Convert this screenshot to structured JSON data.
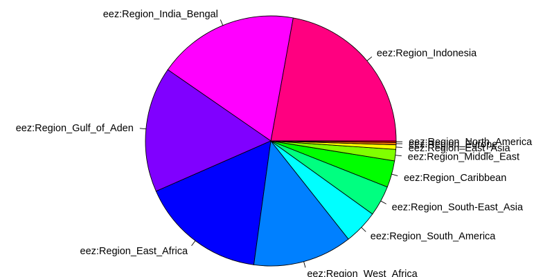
{
  "chart_data": {
    "type": "pie",
    "title": "",
    "slices": [
      {
        "label": "eez:Region_Indonesia",
        "value": 22.5,
        "color": "#FF0080"
      },
      {
        "label": "eez:Region_India_Bengal",
        "value": 18.5,
        "color": "#FF00FF"
      },
      {
        "label": "eez:Region_Gulf_of_Aden",
        "value": 16.5,
        "color": "#8000FF"
      },
      {
        "label": "eez:Region_East_Africa",
        "value": 16.5,
        "color": "#0000FF"
      },
      {
        "label": "eez:Region_West_Africa",
        "value": 13.0,
        "color": "#0080FF"
      },
      {
        "label": "eez:Region_South_America",
        "value": 4.5,
        "color": "#00FFFF"
      },
      {
        "label": "eez:Region_South-East_Asia",
        "value": 4.0,
        "color": "#00FF80"
      },
      {
        "label": "eez:Region_Caribbean",
        "value": 3.5,
        "color": "#00FF00"
      },
      {
        "label": "eez:Region_Middle_East",
        "value": 1.5,
        "color": "#80FF00"
      },
      {
        "label": "eez:Region_East_Asia",
        "value": 0.6,
        "color": "#FFFF00"
      },
      {
        "label": "eez:Region_Europe",
        "value": 0.3,
        "color": "#FF8000"
      },
      {
        "label": "eez:Region_North_America",
        "value": 0.2,
        "color": "#FF0000"
      }
    ]
  }
}
